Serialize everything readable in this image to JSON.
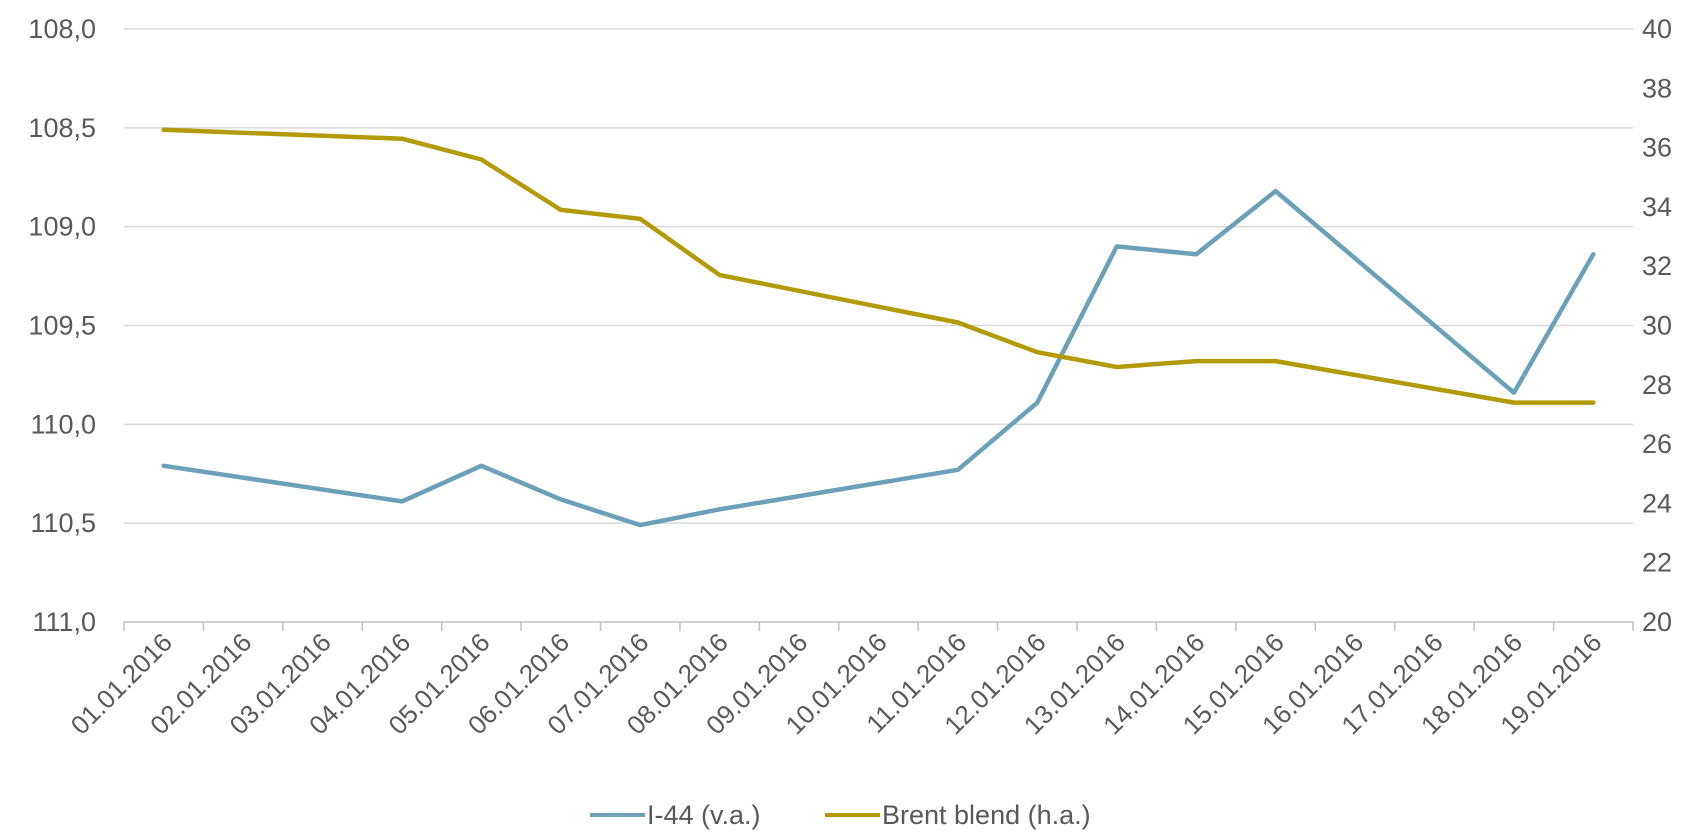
{
  "chart_data": {
    "type": "line",
    "title": "",
    "categories": [
      "01.01.2016",
      "02.01.2016",
      "03.01.2016",
      "04.01.2016",
      "05.01.2016",
      "06.01.2016",
      "07.01.2016",
      "08.01.2016",
      "09.01.2016",
      "10.01.2016",
      "11.01.2016",
      "12.01.2016",
      "13.01.2016",
      "14.01.2016",
      "15.01.2016",
      "16.01.2016",
      "17.01.2016",
      "18.01.2016",
      "19.01.2016"
    ],
    "left_axis": {
      "min": 108.0,
      "max": 111.0,
      "inverted": true,
      "ticks": [
        "108,0",
        "108,5",
        "109,0",
        "109,5",
        "110,0",
        "110,5",
        "111,0"
      ]
    },
    "right_axis": {
      "min": 20,
      "max": 40,
      "ticks": [
        "40",
        "38",
        "36",
        "34",
        "32",
        "30",
        "28",
        "26",
        "24",
        "22",
        "20"
      ]
    },
    "grid": true,
    "legend_position": "bottom",
    "series": [
      {
        "name": "I-44 (v.a.)",
        "axis": "left",
        "color": "#6aa1b8",
        "points": [
          {
            "x": "01.01.2016",
            "y": 110.21
          },
          {
            "x": "04.01.2016",
            "y": 110.39
          },
          {
            "x": "05.01.2016",
            "y": 110.21
          },
          {
            "x": "06.01.2016",
            "y": 110.38
          },
          {
            "x": "07.01.2016",
            "y": 110.51
          },
          {
            "x": "08.01.2016",
            "y": 110.43
          },
          {
            "x": "11.01.2016",
            "y": 110.23
          },
          {
            "x": "12.01.2016",
            "y": 109.89
          },
          {
            "x": "13.01.2016",
            "y": 109.1
          },
          {
            "x": "14.01.2016",
            "y": 109.14
          },
          {
            "x": "15.01.2016",
            "y": 108.82
          },
          {
            "x": "18.01.2016",
            "y": 109.84
          },
          {
            "x": "19.01.2016",
            "y": 109.14
          }
        ]
      },
      {
        "name": "Brent blend (h.a.)",
        "axis": "right",
        "color": "#b39a08",
        "points": [
          {
            "x": "01.01.2016",
            "y": 36.6
          },
          {
            "x": "04.01.2016",
            "y": 36.3
          },
          {
            "x": "05.01.2016",
            "y": 35.6
          },
          {
            "x": "06.01.2016",
            "y": 33.9
          },
          {
            "x": "07.01.2016",
            "y": 33.6
          },
          {
            "x": "08.01.2016",
            "y": 31.7
          },
          {
            "x": "11.01.2016",
            "y": 30.1
          },
          {
            "x": "12.01.2016",
            "y": 29.1
          },
          {
            "x": "13.01.2016",
            "y": 28.6
          },
          {
            "x": "14.01.2016",
            "y": 28.8
          },
          {
            "x": "15.01.2016",
            "y": 28.8
          },
          {
            "x": "18.01.2016",
            "y": 27.4
          },
          {
            "x": "19.01.2016",
            "y": 27.4
          }
        ]
      }
    ]
  }
}
